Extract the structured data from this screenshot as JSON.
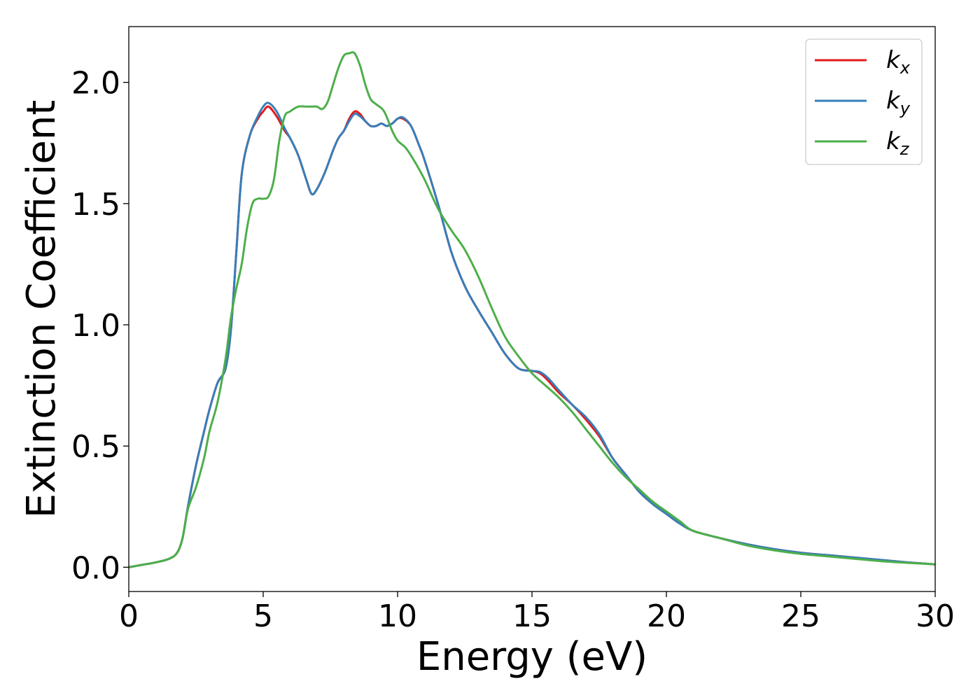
{
  "chart_data": {
    "type": "line",
    "xlabel": "Energy (eV)",
    "ylabel": "Extinction Coefficient",
    "xlim": [
      0,
      30
    ],
    "ylim": [
      -0.1,
      2.23
    ],
    "x_ticks": [
      0,
      5,
      10,
      15,
      20,
      25,
      30
    ],
    "x_tick_labels": [
      "0",
      "5",
      "10",
      "15",
      "20",
      "25",
      "30"
    ],
    "y_ticks": [
      0.0,
      0.5,
      1.0,
      1.5,
      2.0
    ],
    "y_tick_labels": [
      "0.0",
      "0.5",
      "1.0",
      "1.5",
      "2.0"
    ],
    "grid": false,
    "legend_position": "top-right",
    "series": [
      {
        "name": "k",
        "subscript": "x",
        "color": "#e41a1c",
        "x": [
          0,
          0.5,
          1,
          1.5,
          1.8,
          2,
          2.2,
          2.5,
          2.8,
          3,
          3.3,
          3.6,
          3.8,
          4,
          4.2,
          4.5,
          4.8,
          5,
          5.2,
          5.5,
          5.8,
          6,
          6.3,
          6.6,
          6.8,
          7,
          7.3,
          7.6,
          7.8,
          8,
          8.2,
          8.4,
          8.6,
          8.8,
          9,
          9.2,
          9.4,
          9.6,
          9.8,
          10,
          10.2,
          10.5,
          10.8,
          11,
          11.5,
          12,
          12.5,
          13,
          13.5,
          14,
          14.5,
          15,
          15.3,
          15.6,
          16,
          16.5,
          17,
          17.5,
          18,
          18.5,
          19,
          19.5,
          20,
          20.5,
          21,
          22,
          23,
          24,
          25,
          26,
          27,
          28,
          29,
          30
        ],
        "values": [
          0,
          0.01,
          0.02,
          0.035,
          0.06,
          0.12,
          0.25,
          0.42,
          0.56,
          0.65,
          0.76,
          0.82,
          0.98,
          1.3,
          1.62,
          1.78,
          1.85,
          1.88,
          1.9,
          1.86,
          1.8,
          1.77,
          1.7,
          1.6,
          1.54,
          1.56,
          1.63,
          1.72,
          1.77,
          1.8,
          1.85,
          1.88,
          1.87,
          1.84,
          1.82,
          1.82,
          1.83,
          1.82,
          1.83,
          1.85,
          1.85,
          1.82,
          1.74,
          1.68,
          1.5,
          1.3,
          1.16,
          1.06,
          0.97,
          0.88,
          0.82,
          0.81,
          0.8,
          0.77,
          0.72,
          0.67,
          0.61,
          0.54,
          0.45,
          0.38,
          0.31,
          0.26,
          0.22,
          0.18,
          0.15,
          0.12,
          0.095,
          0.075,
          0.06,
          0.05,
          0.04,
          0.03,
          0.02,
          0.012
        ]
      },
      {
        "name": "k",
        "subscript": "y",
        "color": "#377eb8",
        "x": [
          0,
          0.5,
          1,
          1.5,
          1.8,
          2,
          2.2,
          2.5,
          2.8,
          3,
          3.3,
          3.6,
          3.8,
          4,
          4.2,
          4.5,
          4.8,
          5,
          5.2,
          5.5,
          5.8,
          6,
          6.3,
          6.6,
          6.8,
          7,
          7.3,
          7.6,
          7.8,
          8,
          8.2,
          8.4,
          8.6,
          8.8,
          9,
          9.2,
          9.4,
          9.6,
          9.8,
          10,
          10.2,
          10.5,
          10.8,
          11,
          11.5,
          12,
          12.5,
          13,
          13.5,
          14,
          14.5,
          15,
          15.3,
          15.6,
          16,
          16.5,
          17,
          17.5,
          18,
          18.5,
          19,
          19.5,
          20,
          20.5,
          21,
          22,
          23,
          24,
          25,
          26,
          27,
          28,
          29,
          30
        ],
        "values": [
          0,
          0.01,
          0.02,
          0.035,
          0.06,
          0.12,
          0.25,
          0.42,
          0.56,
          0.65,
          0.76,
          0.82,
          0.98,
          1.3,
          1.62,
          1.78,
          1.86,
          1.9,
          1.915,
          1.88,
          1.81,
          1.77,
          1.7,
          1.6,
          1.54,
          1.56,
          1.63,
          1.72,
          1.77,
          1.8,
          1.84,
          1.87,
          1.86,
          1.84,
          1.82,
          1.82,
          1.83,
          1.82,
          1.83,
          1.85,
          1.855,
          1.82,
          1.74,
          1.68,
          1.5,
          1.3,
          1.16,
          1.06,
          0.97,
          0.88,
          0.82,
          0.81,
          0.805,
          0.78,
          0.73,
          0.67,
          0.62,
          0.55,
          0.45,
          0.38,
          0.31,
          0.26,
          0.22,
          0.18,
          0.15,
          0.12,
          0.095,
          0.075,
          0.06,
          0.05,
          0.04,
          0.03,
          0.02,
          0.012
        ]
      },
      {
        "name": "k",
        "subscript": "z",
        "color": "#4daf4a",
        "x": [
          0,
          0.5,
          1,
          1.5,
          1.8,
          2,
          2.2,
          2.5,
          2.8,
          3,
          3.3,
          3.6,
          3.8,
          4,
          4.2,
          4.4,
          4.6,
          4.8,
          5,
          5.2,
          5.4,
          5.6,
          5.8,
          6,
          6.3,
          6.6,
          6.8,
          7,
          7.2,
          7.4,
          7.6,
          7.8,
          8,
          8.2,
          8.4,
          8.6,
          8.8,
          9,
          9.2,
          9.5,
          9.8,
          10,
          10.3,
          10.6,
          11,
          11.5,
          12,
          12.5,
          13,
          13.5,
          14,
          14.5,
          15,
          15.5,
          16,
          16.5,
          17,
          17.5,
          18,
          18.5,
          19,
          19.5,
          20,
          20.5,
          21,
          22,
          23,
          24,
          25,
          26,
          27,
          28,
          29,
          30
        ],
        "values": [
          0,
          0.01,
          0.02,
          0.035,
          0.06,
          0.12,
          0.24,
          0.33,
          0.45,
          0.56,
          0.68,
          0.86,
          1.03,
          1.15,
          1.25,
          1.4,
          1.5,
          1.52,
          1.52,
          1.53,
          1.6,
          1.76,
          1.86,
          1.88,
          1.9,
          1.9,
          1.9,
          1.9,
          1.89,
          1.92,
          1.99,
          2.06,
          2.11,
          2.12,
          2.12,
          2.07,
          1.99,
          1.93,
          1.91,
          1.88,
          1.8,
          1.76,
          1.73,
          1.68,
          1.6,
          1.48,
          1.39,
          1.31,
          1.2,
          1.07,
          0.95,
          0.87,
          0.8,
          0.75,
          0.7,
          0.64,
          0.57,
          0.5,
          0.43,
          0.37,
          0.32,
          0.27,
          0.23,
          0.19,
          0.15,
          0.12,
          0.09,
          0.07,
          0.055,
          0.045,
          0.035,
          0.025,
          0.018,
          0.012
        ]
      }
    ]
  }
}
